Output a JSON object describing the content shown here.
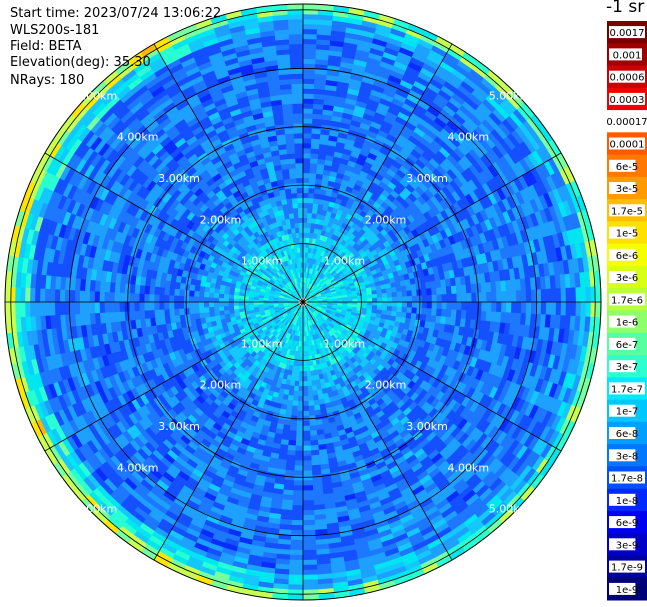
{
  "header": {
    "start_time": "Start time: 2023/07/24 13:06:22",
    "instrument": "WLS200s-181",
    "field": "Field: BETA",
    "elevation": "Elevation(deg): 35.30",
    "nrays": "NRays: 180"
  },
  "chart_data": {
    "type": "heatmap",
    "projection": "polar",
    "field": "BETA",
    "unit_label": "-1 sr",
    "range_rings_km": [
      1,
      2,
      3,
      4,
      5
    ],
    "ring_labels": [
      "1.00km",
      "2.00km",
      "3.00km",
      "4.00km",
      "5.00km"
    ],
    "azimuth_spokes_deg": [
      0,
      30,
      60,
      90,
      120,
      150,
      180,
      210,
      240,
      270,
      300,
      330
    ],
    "colorbar": {
      "labels": [
        "0.0017",
        "0.001",
        "0.0006",
        "0.0003",
        "0.00017",
        "0.0001",
        "6e-5",
        "3e-5",
        "1.7e-5",
        "1e-5",
        "6e-6",
        "3e-6",
        "1.7e-6",
        "1e-6",
        "6e-7",
        "3e-7",
        "1.7e-7",
        "1e-7",
        "6e-8",
        "3e-8",
        "1.7e-8",
        "1e-8",
        "6e-9",
        "3e-9",
        "1.7e-9",
        "1e-9"
      ],
      "colors": [
        "#7a0000",
        "#a00000",
        "#cc0000",
        "#f00000",
        "#ffffff",
        "#ff5a00",
        "#ff7800",
        "#ff9a00",
        "#ffbe00",
        "#ffe000",
        "#f6ff00",
        "#d8ff14",
        "#b8ff3c",
        "#8cff6a",
        "#58ffa0",
        "#2cffd0",
        "#00eaff",
        "#00c8ff",
        "#00a0ff",
        "#0078ff",
        "#0050ff",
        "#0028ff",
        "#0000f0",
        "#0000c8",
        "#0000a0",
        "#000078"
      ]
    },
    "grid": true
  },
  "colors": {
    "background": "#ffffff",
    "grid": "#000000",
    "ring_label": "#ffffff"
  }
}
